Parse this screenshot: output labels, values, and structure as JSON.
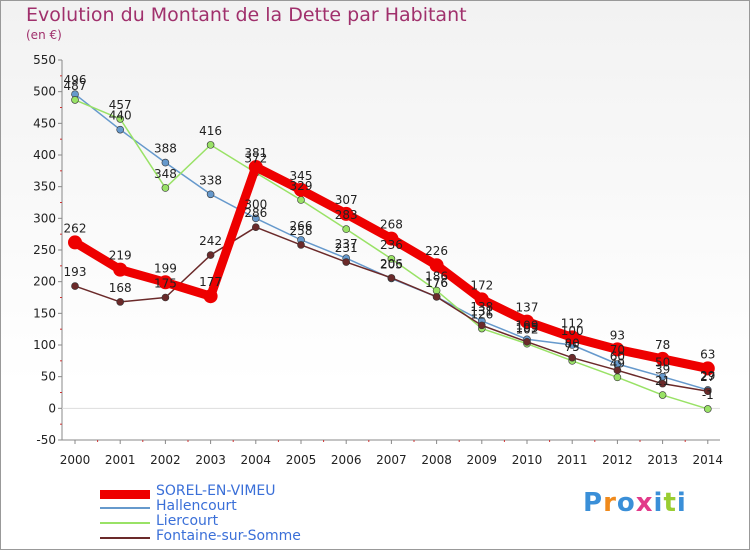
{
  "title": "Evolution du Montant de la Dette par Habitant",
  "unit": "(en €)",
  "logo": "Proxiti",
  "chart_data": {
    "type": "line",
    "title": "Evolution du Montant de la Dette par Habitant",
    "ylabel": "(en €)",
    "x": [
      2000,
      2001,
      2002,
      2003,
      2004,
      2005,
      2006,
      2007,
      2008,
      2009,
      2010,
      2011,
      2012,
      2013,
      2014
    ],
    "ylim": [
      -50,
      550
    ],
    "yticks": [
      -50,
      0,
      50,
      100,
      150,
      200,
      250,
      300,
      350,
      400,
      450,
      500,
      550
    ],
    "grid": false,
    "legend": "bottom-left",
    "series": [
      {
        "name": "SOREL-EN-VIMEU",
        "color": "#ee0000",
        "values": [
          262,
          219,
          199,
          177,
          381,
          345,
          307,
          268,
          226,
          172,
          137,
          112,
          93,
          78,
          63
        ]
      },
      {
        "name": "Hallencourt",
        "color": "#6699cc",
        "values": [
          496,
          440,
          388,
          338,
          300,
          266,
          237,
          205,
          176,
          138,
          109,
          100,
          70,
          50,
          29
        ]
      },
      {
        "name": "Liercourt",
        "color": "#99e266",
        "values": [
          487,
          457,
          348,
          416,
          372,
          329,
          283,
          236,
          186,
          126,
          102,
          75,
          49,
          21,
          -1
        ]
      },
      {
        "name": "Fontaine-sur-Somme",
        "color": "#6b2a2a",
        "values": [
          193,
          168,
          175,
          242,
          286,
          258,
          231,
          206,
          176,
          131,
          105,
          80,
          60,
          39,
          27
        ]
      }
    ]
  }
}
